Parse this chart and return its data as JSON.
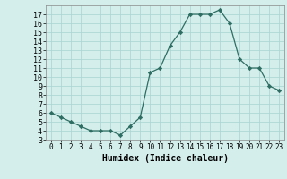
{
  "x": [
    0,
    1,
    2,
    3,
    4,
    5,
    6,
    7,
    8,
    9,
    10,
    11,
    12,
    13,
    14,
    15,
    16,
    17,
    18,
    19,
    20,
    21,
    22,
    23
  ],
  "y": [
    6,
    5.5,
    5,
    4.5,
    4,
    4,
    4,
    3.5,
    4.5,
    5.5,
    10.5,
    11,
    13.5,
    15,
    17,
    17,
    17,
    17.5,
    16,
    12,
    11,
    11,
    9,
    8.5
  ],
  "xlabel": "Humidex (Indice chaleur)",
  "xlim": [
    -0.5,
    23.5
  ],
  "ylim": [
    3,
    18
  ],
  "yticks": [
    3,
    4,
    5,
    6,
    7,
    8,
    9,
    10,
    11,
    12,
    13,
    14,
    15,
    16,
    17
  ],
  "xticks": [
    0,
    1,
    2,
    3,
    4,
    5,
    6,
    7,
    8,
    9,
    10,
    11,
    12,
    13,
    14,
    15,
    16,
    17,
    18,
    19,
    20,
    21,
    22,
    23
  ],
  "line_color": "#2e6e62",
  "marker_color": "#2e6e62",
  "bg_color": "#d4eeec",
  "grid_color": "#a8d4d0",
  "fig_bg": "#d4eeec"
}
